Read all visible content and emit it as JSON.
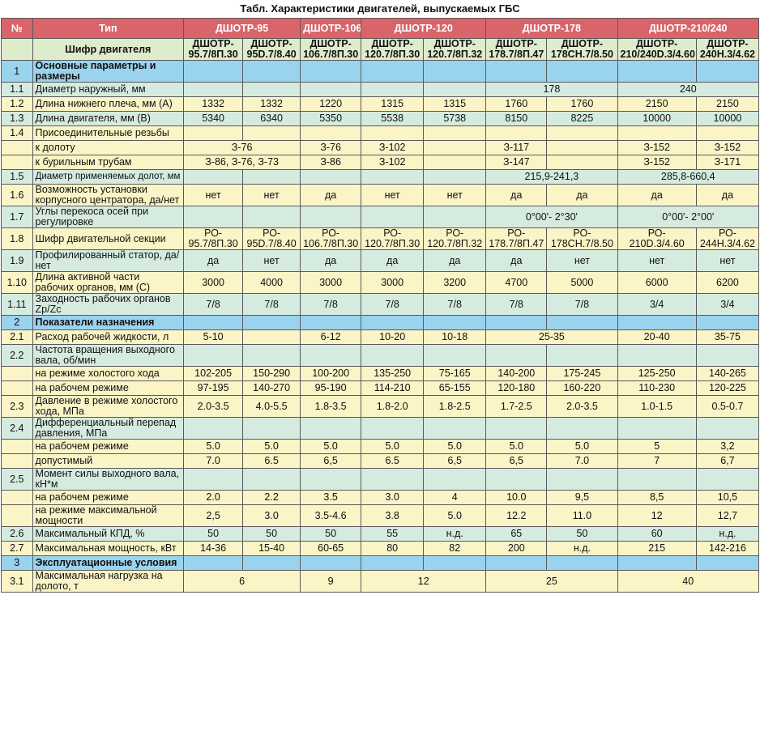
{
  "title": "Табл. Характеристики двигателей, выпускаемых ГБС",
  "header": {
    "num": "№",
    "type": "Тип",
    "groups": [
      "ДШОТР-95",
      "ДШОТР-106",
      "ДШОТР-120",
      "ДШОТР-178",
      "ДШОТР-210/240"
    ]
  },
  "shifr_label": "Шифр двигателя",
  "shifr": [
    [
      "ДШОТР-",
      "95.7/8П.30"
    ],
    [
      "ДШОТР-",
      "95D.7/8.40"
    ],
    [
      "ДШОТР-",
      "106.7/8П.30"
    ],
    [
      "ДШОТР-",
      "120.7/8П.30"
    ],
    [
      "ДШОТР-",
      "120.7/8П.32"
    ],
    [
      "ДШОТР-",
      "178.7/8П.47"
    ],
    [
      "ДШОТР-",
      "178СН.7/8.50"
    ],
    [
      "ДШОТР-",
      "210/240D.3/4.60"
    ],
    [
      "ДШОТР-",
      "240Н.3/4.62"
    ]
  ],
  "s1": {
    "n": "1",
    "label": "Основные параметры и размеры"
  },
  "r1_1": {
    "n": "1.1",
    "label": "Диаметр наружный, мм",
    "v178": "178",
    "v240": "240"
  },
  "r1_2": {
    "n": "1.2",
    "label": "Длина нижнего плеча, мм (A)",
    "v": [
      "1332",
      "1332",
      "1220",
      "1315",
      "1315",
      "1760",
      "1760",
      "2150",
      "2150"
    ]
  },
  "r1_3": {
    "n": "1.3",
    "label": "Длина двигателя, мм (B)",
    "v": [
      "5340",
      "6340",
      "5350",
      "5538",
      "5738",
      "8150",
      "8225",
      "10000",
      "10000"
    ]
  },
  "r1_4": {
    "n": "1.4",
    "label": "Присоединительные резьбы"
  },
  "r1_4a": {
    "label": "к долоту",
    "v95": "З-76",
    "v106": "З-76",
    "v120": "З-102",
    "v178": "З-117",
    "v210": "З-152",
    "v240": "З-152"
  },
  "r1_4b": {
    "label": "к бурильным трубам",
    "v95": "З-86, З-76, З-73",
    "v106": "З-86",
    "v120": "З-102",
    "v178": "З-147",
    "v210": "З-152",
    "v240": "З-171"
  },
  "r1_5": {
    "n": "1.5",
    "label": "Диаметр применяемых долот, мм",
    "v178": "215,9-241,3",
    "v240": "285,8-660,4"
  },
  "r1_6": {
    "n": "1.6",
    "label": "Возможность установки корпусного центратора, да/нет",
    "v": [
      "нет",
      "нет",
      "да",
      "нет",
      "нет",
      "да",
      "да",
      "да",
      "да"
    ]
  },
  "r1_7": {
    "n": "1.7",
    "label": "Углы перекоса осей при регулировке",
    "v178": "0°00'- 2°30'",
    "v240": "0°00'- 2°00'"
  },
  "r1_8": {
    "n": "1.8",
    "label": "Шифр двигательной секции",
    "v": [
      [
        "РО-",
        "95.7/8П.30"
      ],
      [
        "РО-",
        "95D.7/8.40"
      ],
      [
        "РО-",
        "106.7/8П.30"
      ],
      [
        "РО-",
        "120.7/8П.30"
      ],
      [
        "РО-",
        "120.7/8П.32"
      ],
      [
        "РО-",
        "178.7/8П.47"
      ],
      [
        "РО-",
        "178СН.7/8.50"
      ],
      [
        "РО-",
        "210D.3/4.60"
      ],
      [
        "РО-",
        "244Н.3/4.62"
      ]
    ]
  },
  "r1_9": {
    "n": "1.9",
    "label": "Профилированный статор, да/нет",
    "v": [
      "да",
      "нет",
      "да",
      "да",
      "да",
      "да",
      "нет",
      "нет",
      "нет"
    ]
  },
  "r1_10": {
    "n": "1.10",
    "label": "Длина активной части рабочих органов, мм (C)",
    "v": [
      "3000",
      "4000",
      "3000",
      "3000",
      "3200",
      "4700",
      "5000",
      "6000",
      "6200"
    ]
  },
  "r1_11": {
    "n": "1.11",
    "label": "Заходность рабочих органов Zр/Zс",
    "v": [
      "7/8",
      "7/8",
      "7/8",
      "7/8",
      "7/8",
      "7/8",
      "7/8",
      "3/4",
      "3/4"
    ]
  },
  "s2": {
    "n": "2",
    "label": "Показатели назначения"
  },
  "r2_1": {
    "n": "2.1",
    "label": "Расход рабочей жидкости, л",
    "v95": "5-10",
    "v106": "6-12",
    "v120a": "10-20",
    "v120b": "10-18",
    "v178": "25-35",
    "v210": "20-40",
    "v240": "35-75"
  },
  "r2_2": {
    "n": "2.2",
    "label": "Частота вращения выходного вала, об/мин"
  },
  "r2_2a": {
    "label": "на режиме холостого хода",
    "v": [
      "102-205",
      "150-290",
      "100-200",
      "135-250",
      "75-165",
      "140-200",
      "175-245",
      "125-250",
      "140-265"
    ]
  },
  "r2_2b": {
    "label": "на рабочем режиме",
    "v": [
      "97-195",
      "140-270",
      "95-190",
      "114-210",
      "65-155",
      "120-180",
      "160-220",
      "110-230",
      "120-225"
    ]
  },
  "r2_3": {
    "n": "2.3",
    "label": "Давление в режиме холостого хода, МПа",
    "v": [
      "2.0-3.5",
      "4.0-5.5",
      "1.8-3.5",
      "1.8-2.0",
      "1.8-2.5",
      "1.7-2.5",
      "2.0-3.5",
      "1.0-1.5",
      "0.5-0.7"
    ]
  },
  "r2_4": {
    "n": "2.4",
    "label": "Дифференциальный перепад давления, МПа"
  },
  "r2_4a": {
    "label": "на рабочем режиме",
    "v": [
      "5.0",
      "5.0",
      "5.0",
      "5.0",
      "5.0",
      "5.0",
      "5.0",
      "5",
      "3,2"
    ]
  },
  "r2_4b": {
    "label": "допустимый",
    "v": [
      "7.0",
      "6.5",
      "6,5",
      "6.5",
      "6,5",
      "6,5",
      "7.0",
      "7",
      "6,7"
    ]
  },
  "r2_5": {
    "n": "2.5",
    "label": "Момент силы выходного вала, кН*м"
  },
  "r2_5a": {
    "label": "на рабочем режиме",
    "v": [
      "2.0",
      "2.2",
      "3.5",
      "3.0",
      "4",
      "10.0",
      "9,5",
      "8,5",
      "10,5"
    ]
  },
  "r2_5b": {
    "label": "на режиме максимальной мощности",
    "v": [
      "2,5",
      "3.0",
      "3.5-4.6",
      "3.8",
      "5.0",
      "12.2",
      "11.0",
      "12",
      "12,7"
    ]
  },
  "r2_6": {
    "n": "2.6",
    "label": "Максимальный КПД, %",
    "v": [
      "50",
      "50",
      "50",
      "55",
      "н.д.",
      "65",
      "50",
      "60",
      "н.д."
    ]
  },
  "r2_7": {
    "n": "2.7",
    "label": "Максимальная мощность, кВт",
    "v": [
      "14-36",
      "15-40",
      "60-65",
      "80",
      "82",
      "200",
      "н.д.",
      "215",
      "142-216"
    ]
  },
  "s3": {
    "n": "3",
    "label": "Эксплуатационные условия"
  },
  "r3_1": {
    "n": "3.1",
    "label": "Максимальная нагрузка на долото, т",
    "v95": "6",
    "v106": "9",
    "v120": "12",
    "v178": "25",
    "v240": "40"
  }
}
